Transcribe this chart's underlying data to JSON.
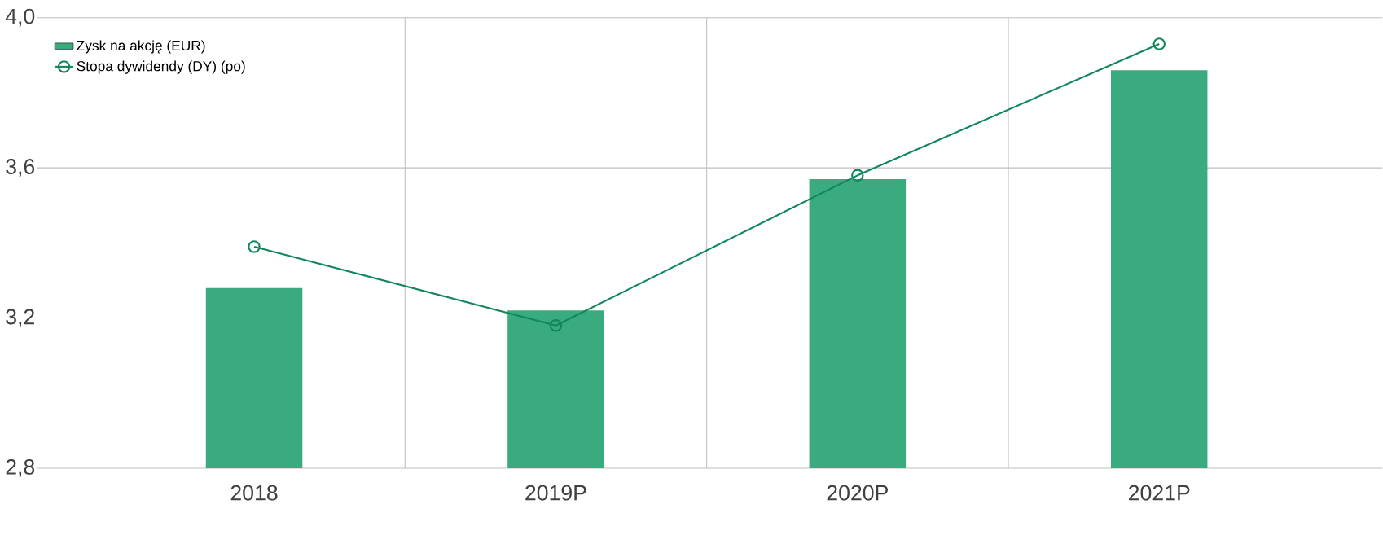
{
  "chart_data": {
    "type": "bar",
    "categories": [
      "2018",
      "2019P",
      "2020P",
      "2021P"
    ],
    "series": [
      {
        "name": "Zysk na akcję (EUR)",
        "color": "#3aaa7f",
        "values": [
          3.28,
          3.22,
          3.57,
          3.86
        ]
      },
      {
        "name": "Stopa dywidendy (DY) (po)",
        "type": "line",
        "color": "#11875a",
        "marker": "circle",
        "values": [
          3.39,
          3.18,
          3.58,
          3.93
        ]
      }
    ],
    "ylim": [
      2.8,
      4.0
    ],
    "yticks": [
      {
        "value": 2.8,
        "label": "2,8"
      },
      {
        "value": 3.2,
        "label": "3,2"
      },
      {
        "value": 3.6,
        "label": "3,6"
      },
      {
        "value": 4.0,
        "label": "4,0"
      }
    ],
    "grid": true,
    "legend": "top left"
  }
}
